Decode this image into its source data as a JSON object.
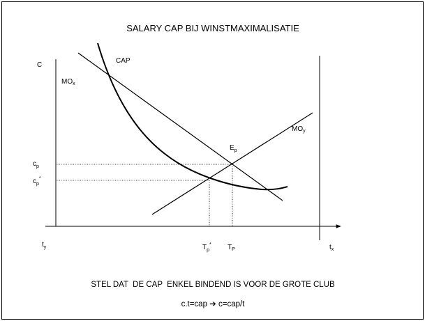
{
  "title": "SALARY CAP BIJ WINSTMAXIMALISATIE",
  "labels": {
    "c_axis": "C",
    "cap": "CAP",
    "mo_x": {
      "text": "MO",
      "sub": "x"
    },
    "mo_y": {
      "text": "MO",
      "sub": "y"
    },
    "e_p": {
      "text": "E",
      "sub": "p"
    },
    "c_p": {
      "text": "c",
      "sub": "p"
    },
    "c_p_star": {
      "text": "c",
      "sub": "p",
      "sup": "*"
    },
    "t_y": {
      "text": "t",
      "sub": "y"
    },
    "t_x": {
      "text": "t",
      "sub": "x"
    },
    "T_p_star": {
      "text": "T",
      "sub": "p",
      "sup": "*"
    },
    "T_P": {
      "text": "T",
      "sub": "P"
    }
  },
  "statement": "STEL DAT  DE CAP  ENKEL BINDEND IS VOOR DE GROTE CLUB",
  "formula": "c.t=cap ➔ c=cap/t"
}
